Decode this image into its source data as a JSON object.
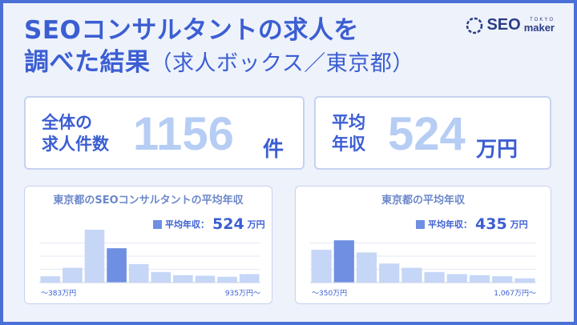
{
  "title": {
    "line1": "SEOコンサルタントの求人を",
    "line2": "調べた結果",
    "line2_sub": "（求人ボックス／東京都）"
  },
  "logo": {
    "seo": "SEO",
    "tokyo": "TOKYO",
    "maker": "maker"
  },
  "stats": {
    "jobs": {
      "label1": "全体の",
      "label2": "求人件数",
      "value": "1156",
      "unit": "件"
    },
    "salary": {
      "label1": "平均",
      "label2": "年収",
      "value": "524",
      "unit": "万円"
    }
  },
  "charts": {
    "left": {
      "title": "東京都のSEOコンサルタントの平均年収",
      "avg_label": "平均年収：",
      "avg_value": "524",
      "avg_unit": "万円",
      "axis_min": "〜383万円",
      "axis_max": "935万円〜"
    },
    "right": {
      "title": "東京都の平均年収",
      "avg_label": "平均年収：",
      "avg_value": "435",
      "avg_unit": "万円",
      "axis_min": "〜350万円",
      "axis_max": "1,067万円〜"
    }
  },
  "colors": {
    "accent": "#3b5ed2",
    "bar": "#c5d6f6",
    "bar_highlight": "#6f8fe2"
  },
  "chart_data": [
    {
      "type": "bar",
      "title": "東京都のSEOコンサルタントの平均年収",
      "categories": [
        "b1",
        "b2",
        "b3",
        "b4",
        "b5",
        "b6",
        "b7",
        "b8",
        "b9",
        "b10"
      ],
      "values": [
        0.12,
        0.28,
        1.0,
        0.65,
        0.35,
        0.2,
        0.14,
        0.13,
        0.11,
        0.16
      ],
      "highlight_index": 3,
      "xlabel_min": "〜383万円",
      "xlabel_max": "935万円〜"
    },
    {
      "type": "bar",
      "title": "東京都の平均年収",
      "categories": [
        "b1",
        "b2",
        "b3",
        "b4",
        "b5",
        "b6",
        "b7",
        "b8",
        "b9",
        "b10"
      ],
      "values": [
        0.62,
        0.8,
        0.57,
        0.36,
        0.28,
        0.2,
        0.16,
        0.14,
        0.12,
        0.08
      ],
      "highlight_index": 1,
      "xlabel_min": "〜350万円",
      "xlabel_max": "1,067万円〜"
    }
  ]
}
